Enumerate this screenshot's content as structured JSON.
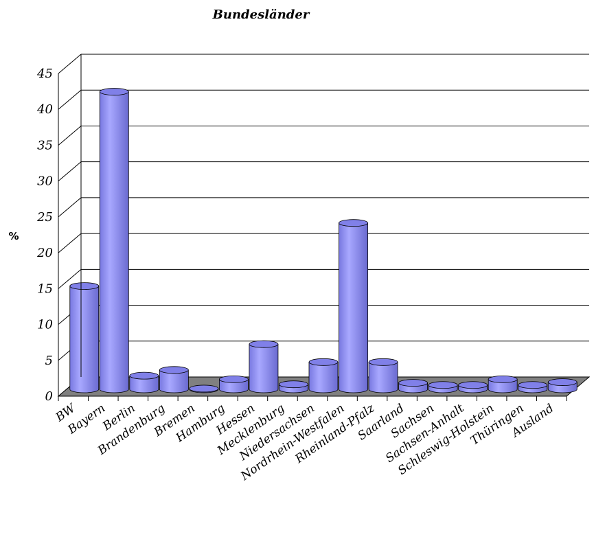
{
  "chart_data": {
    "type": "bar",
    "title": "Bundesländer",
    "ylabel": "%",
    "xlabel": "",
    "ylim": [
      0,
      45
    ],
    "yticks": [
      0,
      5,
      10,
      15,
      20,
      25,
      30,
      35,
      40,
      45
    ],
    "grid": true,
    "legend": "none",
    "categories": [
      "BW",
      "Bayern",
      "Berlin",
      "Brandenburg",
      "Bremen",
      "Hamburg",
      "Hessen",
      "Mecklenburg",
      "Niedersachsen",
      "Nordrhein-Westfalen",
      "Rheinland-Pfalz",
      "Saarland",
      "Sachsen",
      "Sachsen-Anhalt",
      "Schleswig-Holstein",
      "Thüringen",
      "Ausland"
    ],
    "values": [
      14.4,
      41.5,
      1.9,
      2.7,
      0.1,
      1.4,
      6.3,
      0.7,
      3.8,
      23.2,
      3.8,
      0.9,
      0.6,
      0.6,
      1.4,
      0.6,
      1.0
    ],
    "colors": {
      "bar_front": "#9999ff",
      "bar_side": "#7070d8",
      "bar_top": "#8080e8",
      "floor": "#808080",
      "grid": "#000000"
    }
  }
}
